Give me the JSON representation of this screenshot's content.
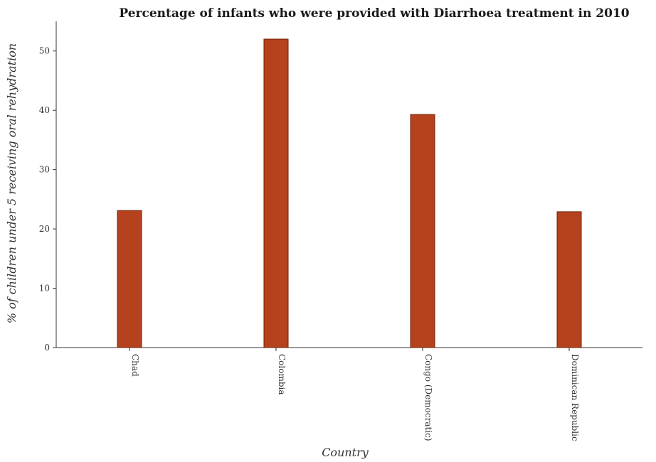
{
  "chart_data": {
    "type": "bar",
    "title": "Percentage of infants who were provided with Diarrhoea treatment in 2010",
    "xlabel": "Country",
    "ylabel": "% of children under 5 receiving oral rehydration",
    "categories": [
      "Chad",
      "Colombia",
      "Congo (Democratic)",
      "Dominican Republic"
    ],
    "values": [
      23.1,
      52.0,
      39.3,
      22.9
    ],
    "ylim": [
      0,
      55
    ],
    "yticks": [
      0,
      10,
      20,
      30,
      40,
      50
    ],
    "grid": false,
    "legend": "none",
    "colors": {
      "bar": "#b5421d",
      "bar_edge": "#6e2209"
    }
  }
}
